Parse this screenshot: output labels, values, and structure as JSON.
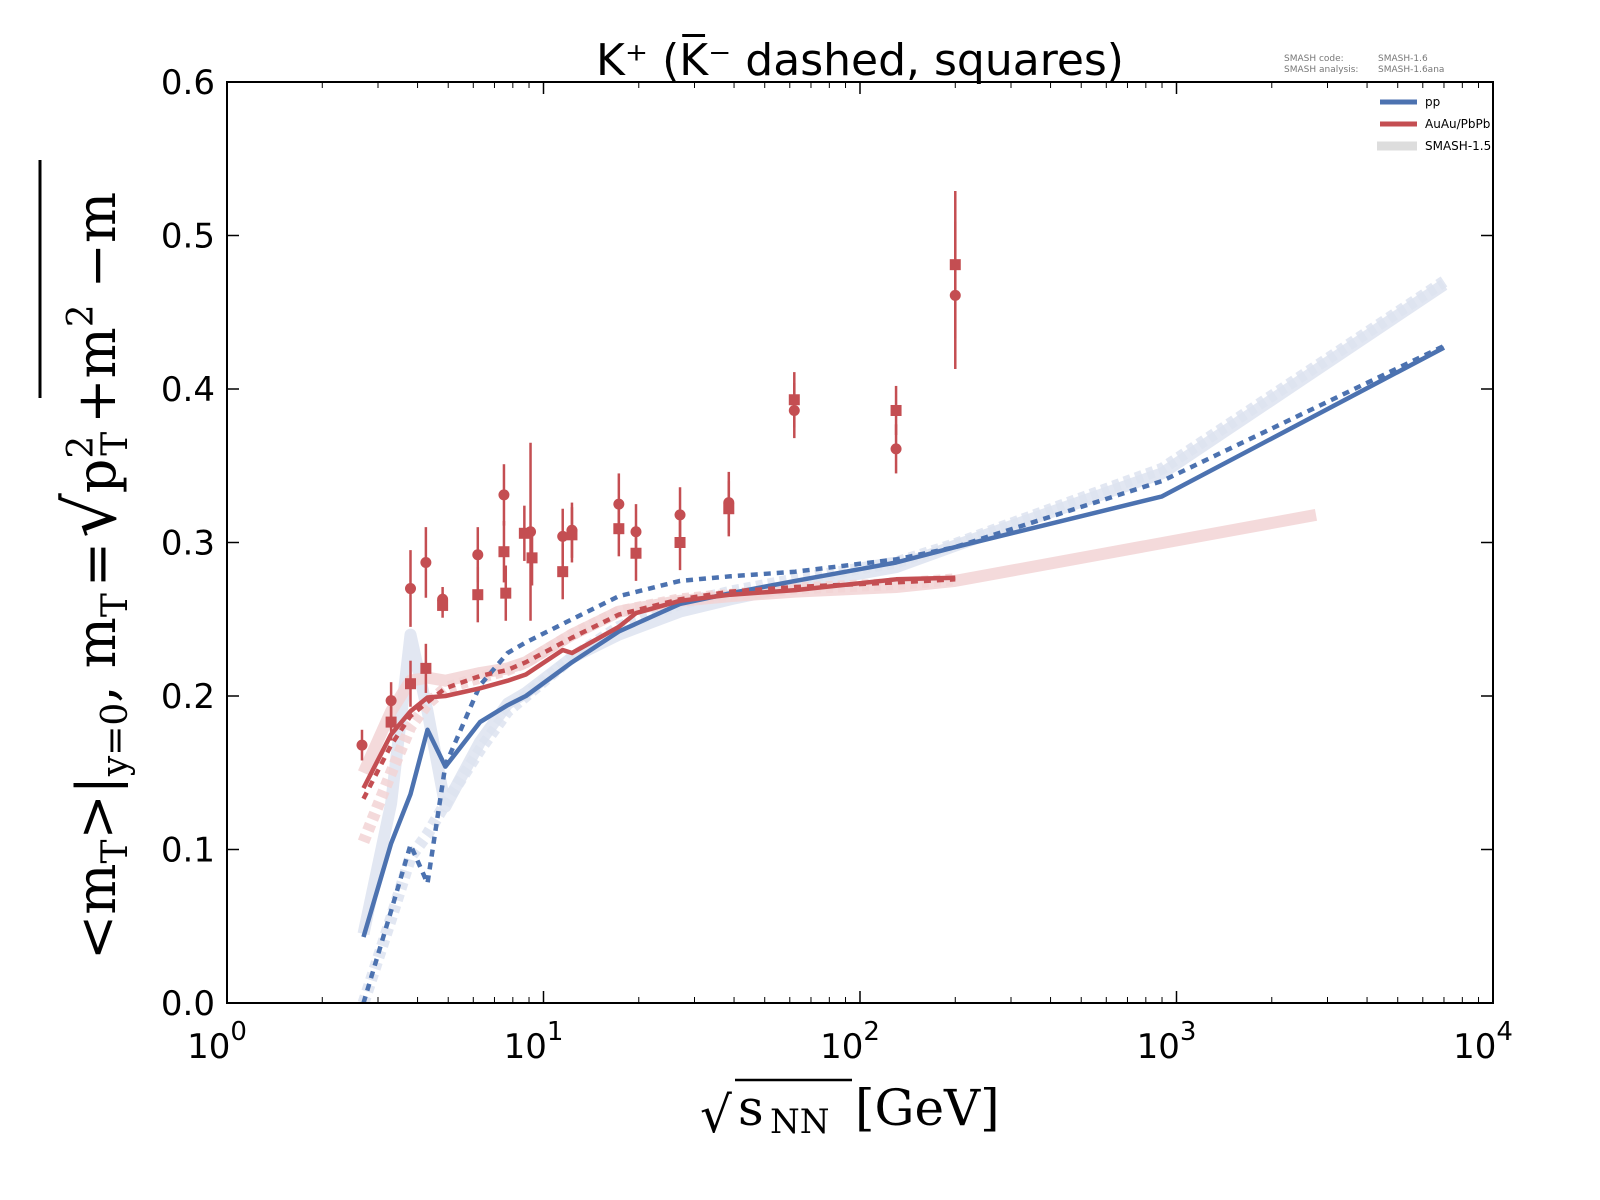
{
  "chart_data": {
    "type": "line",
    "title": "K⁺ (K̅⁻ dashed, squares)",
    "xlabel": "√s_NN [GeV]",
    "xlabel_parts": {
      "sqrt": "√",
      "s": "s",
      "sub": "NN",
      "unit": "[GeV]"
    },
    "ylabel": "<m_T>|_{y=0}, m_T = √(p_T² + m²) − m",
    "ylabel_parts": {
      "lt": "<m",
      "sub_T1": "T",
      "gt_bar": ">|",
      "sub_y0": "y=0",
      "comma_m": ", m",
      "sub_T2": "T",
      "eq": "=",
      "p": "p",
      "sup_2a": "2",
      "sub_T3": "T",
      "plus_m": "+m",
      "sup_2b": "2",
      "minus_m": "−m"
    },
    "xscale": "log",
    "xlim": [
      1,
      10000
    ],
    "ylim": [
      0.0,
      0.6
    ],
    "x_ticks": [
      {
        "value": 1,
        "base": "10",
        "exp": "0"
      },
      {
        "value": 10,
        "base": "10",
        "exp": "1"
      },
      {
        "value": 100,
        "base": "10",
        "exp": "2"
      },
      {
        "value": 1000,
        "base": "10",
        "exp": "3"
      },
      {
        "value": 10000,
        "base": "10",
        "exp": "4"
      }
    ],
    "y_ticks": [
      {
        "value": 0.0,
        "label": "0.0"
      },
      {
        "value": 0.1,
        "label": "0.1"
      },
      {
        "value": 0.2,
        "label": "0.2"
      },
      {
        "value": 0.3,
        "label": "0.3"
      },
      {
        "value": 0.4,
        "label": "0.4"
      },
      {
        "value": 0.5,
        "label": "0.5"
      },
      {
        "value": 0.6,
        "label": "0.6"
      }
    ],
    "grid": false,
    "legend_position": "top-right",
    "legend": [
      {
        "label": "pp",
        "color": "#4c72b0"
      },
      {
        "label": "AuAu/PbPb",
        "color": "#c44e52"
      },
      {
        "label": "SMASH-1.5",
        "color": "#dddddd"
      }
    ],
    "annotation": {
      "line1_key": "SMASH code:",
      "line1_val": "SMASH-1.6",
      "line2_key": "SMASH analysis:",
      "line2_val": "SMASH-1.6ana"
    },
    "colors": {
      "pp": "#4c72b0",
      "pp_old": "#dde3f0",
      "aa": "#c44e52",
      "aa_old": "#f2d4d5"
    },
    "series": [
      {
        "name": "pp K+ (SMASH-1.6)",
        "style": "solid",
        "color_key": "pp",
        "x": [
          2.7,
          3.3,
          3.8,
          4.3,
          4.9,
          6.3,
          7.7,
          8.8,
          12.3,
          17.3,
          27,
          39,
          62.4,
          130,
          200,
          900,
          7000
        ],
        "y": [
          0.043,
          0.104,
          0.136,
          0.178,
          0.154,
          0.183,
          0.194,
          0.2,
          0.222,
          0.242,
          0.26,
          0.267,
          0.275,
          0.287,
          0.297,
          0.33,
          0.427
        ]
      },
      {
        "name": "pp K- (SMASH-1.6)",
        "style": "dashed",
        "color_key": "pp",
        "x": [
          2.7,
          3.3,
          3.8,
          4.3,
          4.9,
          6.3,
          7.7,
          8.8,
          12.3,
          17.3,
          27,
          39,
          62.4,
          130,
          200,
          900,
          7000
        ],
        "y": [
          0.0,
          0.06,
          0.103,
          0.078,
          0.155,
          0.207,
          0.228,
          0.235,
          0.25,
          0.265,
          0.275,
          0.278,
          0.281,
          0.289,
          0.297,
          0.34,
          0.428
        ]
      },
      {
        "name": "AuAu/PbPb K+ (SMASH-1.6)",
        "style": "solid",
        "color_key": "aa",
        "x": [
          2.7,
          3.3,
          3.8,
          4.3,
          4.9,
          6.3,
          7.7,
          8.8,
          11.5,
          12.3,
          17.3,
          19.6,
          27,
          39,
          62.4,
          130,
          200
        ],
        "y": [
          0.14,
          0.175,
          0.19,
          0.199,
          0.2,
          0.205,
          0.21,
          0.214,
          0.23,
          0.228,
          0.245,
          0.254,
          0.262,
          0.266,
          0.269,
          0.276,
          0.277
        ]
      },
      {
        "name": "AuAu/PbPb K- (SMASH-1.6)",
        "style": "dashed",
        "color_key": "aa",
        "x": [
          2.7,
          3.3,
          3.8,
          4.3,
          4.9,
          6.3,
          7.7,
          8.8,
          12.3,
          17.3,
          27,
          39,
          62.4,
          130,
          200
        ],
        "y": [
          0.133,
          0.168,
          0.187,
          0.196,
          0.205,
          0.213,
          0.217,
          0.222,
          0.238,
          0.253,
          0.263,
          0.268,
          0.271,
          0.274,
          0.276
        ]
      },
      {
        "name": "pp K+ (SMASH-1.5)",
        "style": "solid",
        "color_key": "pp_old",
        "x": [
          2.7,
          3.3,
          3.8,
          4.3,
          4.9,
          6.3,
          7.7,
          8.8,
          12.3,
          17.3,
          27,
          39,
          62.4,
          130,
          200,
          900,
          7000
        ],
        "y": [
          0.045,
          0.13,
          0.24,
          0.19,
          0.128,
          0.17,
          0.195,
          0.202,
          0.225,
          0.24,
          0.255,
          0.263,
          0.272,
          0.284,
          0.298,
          0.345,
          0.468
        ]
      },
      {
        "name": "pp K- (SMASH-1.5)",
        "style": "dashed",
        "color_key": "pp_old",
        "x": [
          2.7,
          3.3,
          3.8,
          4.3,
          4.9,
          6.3,
          7.7,
          8.8,
          12.3,
          17.3,
          27,
          39,
          62.4,
          130,
          200,
          900,
          7000
        ],
        "y": [
          0.0,
          0.055,
          0.095,
          0.11,
          0.13,
          0.165,
          0.19,
          0.2,
          0.225,
          0.245,
          0.26,
          0.268,
          0.276,
          0.287,
          0.299,
          0.348,
          0.47
        ]
      },
      {
        "name": "AuAu/PbPb K+ (SMASH-1.5)",
        "style": "solid",
        "color_key": "aa_old",
        "x": [
          2.7,
          3.3,
          3.8,
          4.3,
          4.9,
          6.3,
          7.7,
          8.8,
          12.3,
          17.3,
          27,
          39,
          62.4,
          130,
          200,
          2760
        ],
        "y": [
          0.15,
          0.19,
          0.21,
          0.212,
          0.21,
          0.215,
          0.218,
          0.222,
          0.24,
          0.255,
          0.262,
          0.265,
          0.268,
          0.271,
          0.275,
          0.318
        ]
      },
      {
        "name": "AuAu/PbPb K- (SMASH-1.5)",
        "style": "dashed",
        "color_key": "aa_old",
        "x": [
          2.7,
          3.3,
          3.8,
          4.3,
          4.9,
          6.3,
          7.7,
          8.8,
          12.3,
          17.3,
          27,
          39,
          62.4,
          130,
          200
        ],
        "y": [
          0.105,
          0.15,
          0.18,
          0.195,
          0.205,
          0.212,
          0.217,
          0.222,
          0.24,
          0.255,
          0.263,
          0.266,
          0.27,
          0.273,
          0.276
        ]
      }
    ],
    "experimental_data": {
      "color_key": "aa",
      "circles_Kplus": [
        {
          "x": 2.67,
          "y": 0.168,
          "err": 0.01
        },
        {
          "x": 3.3,
          "y": 0.197,
          "err": 0.012
        },
        {
          "x": 3.8,
          "y": 0.27,
          "err": 0.025
        },
        {
          "x": 4.25,
          "y": 0.287,
          "err": 0.023
        },
        {
          "x": 4.8,
          "y": 0.263,
          "err": 0.008
        },
        {
          "x": 6.2,
          "y": 0.292,
          "err": 0.018
        },
        {
          "x": 7.5,
          "y": 0.331,
          "err": 0.02
        },
        {
          "x": 9.1,
          "y": 0.307,
          "err": 0.058
        },
        {
          "x": 11.5,
          "y": 0.304,
          "err": 0.018
        },
        {
          "x": 12.3,
          "y": 0.308,
          "err": 0.018
        },
        {
          "x": 17.3,
          "y": 0.325,
          "err": 0.02
        },
        {
          "x": 19.6,
          "y": 0.307,
          "err": 0.018
        },
        {
          "x": 27,
          "y": 0.318,
          "err": 0.018
        },
        {
          "x": 38.5,
          "y": 0.326,
          "err": 0.02
        },
        {
          "x": 62,
          "y": 0.386,
          "err": 0.018
        },
        {
          "x": 130,
          "y": 0.361,
          "err": 0.016
        },
        {
          "x": 200,
          "y": 0.461,
          "err": 0.048
        }
      ],
      "squares_Kminus": [
        {
          "x": 3.3,
          "y": 0.183,
          "err": 0.012
        },
        {
          "x": 3.8,
          "y": 0.208,
          "err": 0.015
        },
        {
          "x": 4.25,
          "y": 0.218,
          "err": 0.016
        },
        {
          "x": 4.8,
          "y": 0.259,
          "err": 0.008
        },
        {
          "x": 6.2,
          "y": 0.266,
          "err": 0.018
        },
        {
          "x": 7.5,
          "y": 0.294,
          "err": 0.02
        },
        {
          "x": 7.6,
          "y": 0.267,
          "err": 0.018
        },
        {
          "x": 8.7,
          "y": 0.306,
          "err": 0.018
        },
        {
          "x": 9.2,
          "y": 0.29,
          "err": 0.018
        },
        {
          "x": 11.5,
          "y": 0.281,
          "err": 0.018
        },
        {
          "x": 12.3,
          "y": 0.305,
          "err": 0.018
        },
        {
          "x": 17.3,
          "y": 0.309,
          "err": 0.018
        },
        {
          "x": 19.6,
          "y": 0.293,
          "err": 0.018
        },
        {
          "x": 27,
          "y": 0.3,
          "err": 0.018
        },
        {
          "x": 38.5,
          "y": 0.322,
          "err": 0.018
        },
        {
          "x": 62,
          "y": 0.393,
          "err": 0.018
        },
        {
          "x": 130,
          "y": 0.386,
          "err": 0.016
        },
        {
          "x": 200,
          "y": 0.481,
          "err": 0.048
        }
      ]
    }
  }
}
